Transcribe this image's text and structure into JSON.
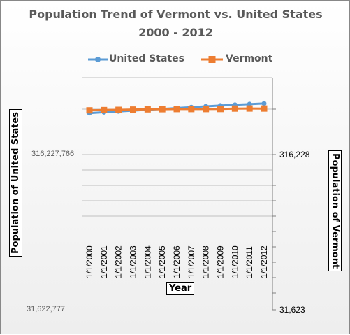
{
  "chart_data": {
    "type": "line",
    "title": "Population Trend of Vermont vs. United States",
    "subtitle": "2000 - 2012",
    "xlabel": "Year",
    "ylabel_left": "Population of United States",
    "ylabel_right": "Population of Vermont",
    "categories": [
      "1/1/2000",
      "1/1/2001",
      "1/1/2002",
      "1/1/2003",
      "1/1/2004",
      "1/1/2005",
      "1/1/2006",
      "1/1/2007",
      "1/1/2008",
      "1/1/2009",
      "1/1/2010",
      "1/1/2011",
      "1/1/2012"
    ],
    "left_axis": {
      "scale": "log",
      "ylim": [
        31622777,
        1000000000
      ],
      "tick_labels": [
        {
          "value": 316227766,
          "label": "316,227,766"
        },
        {
          "value": 31622777,
          "label": "31,622,777"
        }
      ]
    },
    "right_axis": {
      "scale": "log",
      "ylim": [
        31623,
        1000000
      ],
      "tick_labels": [
        {
          "value": 316228,
          "label": "316,228"
        },
        {
          "value": 31623,
          "label": "31,623"
        }
      ]
    },
    "series": [
      {
        "name": "United States",
        "axis": "left",
        "color": "#5b9bd5",
        "marker": "circle",
        "values": [
          282162411,
          284968955,
          287625193,
          290107933,
          292805298,
          295516599,
          298379912,
          301231207,
          304093966,
          306771529,
          309349689,
          311591917,
          313914040
        ]
      },
      {
        "name": "Vermont",
        "axis": "right",
        "color": "#ed7d31",
        "marker": "square",
        "values": [
          609618,
          611967,
          614102,
          616585,
          618633,
          619920,
          621215,
          621254,
          621270,
          621760,
          625741,
          626320,
          626011
        ]
      }
    ],
    "grid": true,
    "legend_position": "top"
  }
}
